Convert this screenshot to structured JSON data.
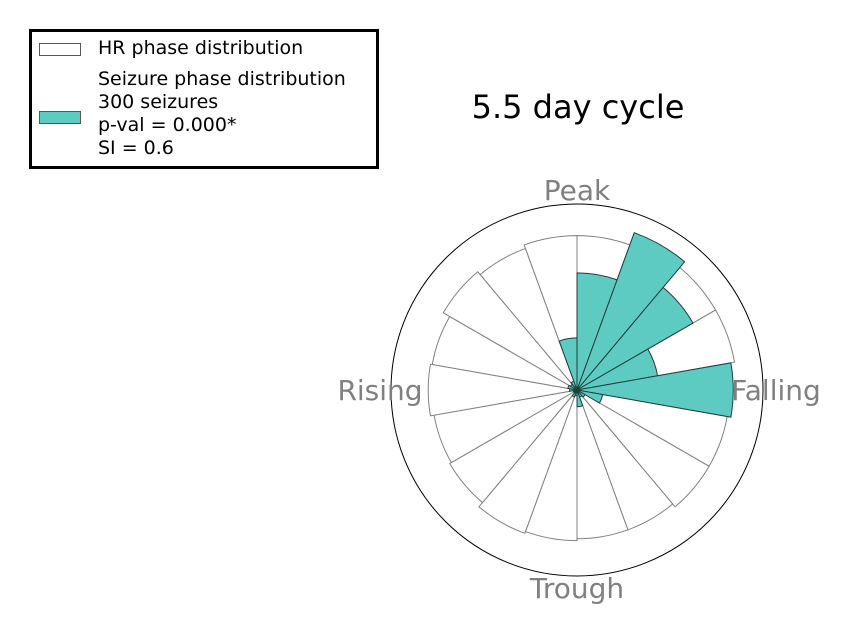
{
  "title": "5.5 day cycle",
  "legend": {
    "hr_label": "HR phase distribution",
    "seizure_lines": [
      "Seizure phase distribution",
      "300 seizures",
      "p-val = 0.000*",
      "SI = 0.6"
    ]
  },
  "colors": {
    "seizure": "#5ecbc2",
    "hr_edge": "#808080",
    "seizure_edge": "#1f3f3c"
  },
  "chart_data": {
    "type": "polar-bar",
    "title": "5.5 day cycle",
    "direction_labels": {
      "top": "Peak",
      "right": "Falling",
      "bottom": "Trough",
      "left": "Rising"
    },
    "bins": 18,
    "bin_width_deg": 20,
    "bin_start_deg": [
      0,
      20,
      40,
      60,
      80,
      100,
      120,
      140,
      160,
      180,
      200,
      220,
      240,
      260,
      280,
      300,
      320,
      340
    ],
    "r_max": 1.0,
    "series": [
      {
        "name": "HR phase distribution",
        "values": [
          0.83,
          0.86,
          0.86,
          0.86,
          0.83,
          0.82,
          0.82,
          0.8,
          0.8,
          0.81,
          0.82,
          0.79,
          0.78,
          0.8,
          0.79,
          0.83,
          0.81,
          0.83
        ]
      },
      {
        "name": "Seizure phase distribution",
        "values": [
          0.63,
          0.9,
          0.72,
          0.44,
          0.84,
          0.14,
          0.05,
          0.04,
          0.09,
          0.03,
          0.04,
          0.02,
          0.02,
          0.04,
          0.05,
          0.04,
          0.05,
          0.28
        ]
      }
    ]
  }
}
